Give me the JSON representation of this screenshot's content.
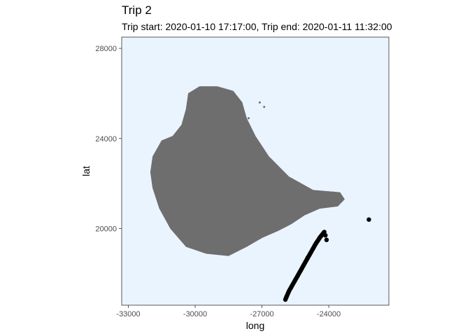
{
  "chart_data": {
    "type": "scatter",
    "title": "Trip 2",
    "subtitle": "Trip start: 2020-01-10 17:17:00, Trip end: 2020-01-11 11:32:00",
    "xlabel": "long",
    "ylabel": "lat",
    "xlim": [
      -33300,
      -21300
    ],
    "ylim": [
      16600,
      28500
    ],
    "x_ticks": [
      -33000,
      -30000,
      -27000,
      -24000
    ],
    "x_tick_labels": [
      "-33000",
      "-30000",
      "-27000",
      "-24000"
    ],
    "y_ticks": [
      20000,
      24000,
      28000
    ],
    "y_tick_labels": [
      "20000",
      "24000",
      "28000"
    ],
    "grid": false,
    "legend": "none",
    "colors": {
      "panel_background": "#eaf4fe",
      "panel_border": "#333333",
      "land": "#6e6e6e",
      "points": "#000000"
    },
    "land_polygon": [
      [
        -31500,
        23900
      ],
      [
        -31900,
        23200
      ],
      [
        -32000,
        22500
      ],
      [
        -31900,
        21800
      ],
      [
        -31600,
        20900
      ],
      [
        -31100,
        20000
      ],
      [
        -30400,
        19200
      ],
      [
        -29500,
        18900
      ],
      [
        -28500,
        18800
      ],
      [
        -27700,
        19200
      ],
      [
        -27000,
        19600
      ],
      [
        -26300,
        19900
      ],
      [
        -25700,
        20200
      ],
      [
        -25100,
        20600
      ],
      [
        -24400,
        20900
      ],
      [
        -23600,
        21000
      ],
      [
        -23300,
        21300
      ],
      [
        -23500,
        21600
      ],
      [
        -24700,
        21700
      ],
      [
        -25800,
        22300
      ],
      [
        -26700,
        23200
      ],
      [
        -27300,
        24100
      ],
      [
        -27700,
        24900
      ],
      [
        -27900,
        25600
      ],
      [
        -28300,
        26100
      ],
      [
        -29000,
        26300
      ],
      [
        -29800,
        26300
      ],
      [
        -30300,
        26000
      ],
      [
        -30400,
        25300
      ],
      [
        -30600,
        24600
      ],
      [
        -31000,
        24100
      ]
    ],
    "land_islets": [
      [
        -27100,
        25600
      ],
      [
        -26900,
        25400
      ],
      [
        -27600,
        24900
      ],
      [
        -23800,
        21600
      ]
    ],
    "series": [
      {
        "x": [
          -25950,
          -25800,
          -25600,
          -25400,
          -25200,
          -25000,
          -24800,
          -24600,
          -24400,
          -24200,
          -24150,
          -24100,
          -24950,
          -22200
        ],
        "y": [
          16850,
          17200,
          17550,
          17900,
          18250,
          18600,
          18950,
          19300,
          19600,
          19850,
          19700,
          19500,
          18700,
          20400
        ]
      }
    ]
  }
}
